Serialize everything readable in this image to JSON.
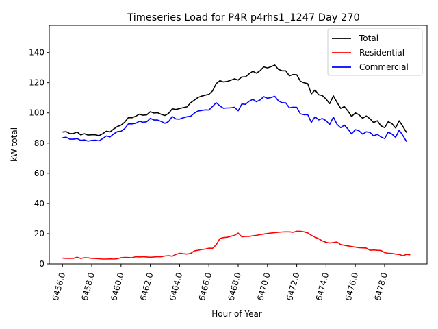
{
  "chart_data": {
    "type": "line",
    "title": "Timeseries Load for P4R p4rhs1_1247  Day 270",
    "xlabel": "Hour of Year",
    "ylabel": "kW total",
    "xlim": [
      6455.1,
      6480.9
    ],
    "ylim": [
      0,
      158
    ],
    "xticks": [
      6456,
      6458,
      6460,
      6462,
      6464,
      6466,
      6468,
      6470,
      6472,
      6474,
      6476,
      6478
    ],
    "xtick_labels": [
      "6456.0",
      "6458.0",
      "6460.0",
      "6462.0",
      "6464.0",
      "6466.0",
      "6468.0",
      "6470.0",
      "6472.0",
      "6474.0",
      "6476.0",
      "6478.0"
    ],
    "yticks": [
      0,
      20,
      40,
      60,
      80,
      100,
      120,
      140
    ],
    "ytick_labels": [
      "0",
      "20",
      "40",
      "60",
      "80",
      "100",
      "120",
      "140"
    ],
    "grid": false,
    "legend_position": "top-right",
    "x": [
      6456.0,
      6456.25,
      6456.5,
      6456.75,
      6457.0,
      6457.25,
      6457.5,
      6457.75,
      6458.0,
      6458.25,
      6458.5,
      6458.75,
      6459.0,
      6459.25,
      6459.5,
      6459.75,
      6460.0,
      6460.25,
      6460.5,
      6460.75,
      6461.0,
      6461.25,
      6461.5,
      6461.75,
      6462.0,
      6462.25,
      6462.5,
      6462.75,
      6463.0,
      6463.25,
      6463.5,
      6463.75,
      6464.0,
      6464.25,
      6464.5,
      6464.75,
      6465.0,
      6465.25,
      6465.5,
      6465.75,
      6466.0,
      6466.25,
      6466.5,
      6466.75,
      6467.0,
      6467.25,
      6467.5,
      6467.75,
      6468.0,
      6468.25,
      6468.5,
      6468.75,
      6469.0,
      6469.25,
      6469.5,
      6469.75,
      6470.0,
      6470.25,
      6470.5,
      6470.75,
      6471.0,
      6471.25,
      6471.5,
      6471.75,
      6472.0,
      6472.25,
      6472.5,
      6472.75,
      6473.0,
      6473.25,
      6473.5,
      6473.75,
      6474.0,
      6474.25,
      6474.5,
      6474.75,
      6475.0,
      6475.25,
      6475.5,
      6475.75,
      6476.0,
      6476.25,
      6476.5,
      6476.75,
      6477.0,
      6477.25,
      6477.5,
      6477.75,
      6478.0,
      6478.25,
      6478.5,
      6478.75,
      6479.0,
      6479.25,
      6479.5,
      6479.75
    ],
    "series": [
      {
        "name": "Total",
        "color": "#000000",
        "values": [
          87.3,
          87.6,
          86.3,
          86.3,
          87.4,
          85.4,
          86.2,
          85.3,
          85.5,
          85.5,
          84.9,
          86.2,
          87.9,
          87.4,
          89.3,
          91.0,
          91.9,
          93.9,
          96.9,
          96.8,
          97.8,
          99.1,
          98.5,
          98.7,
          100.8,
          99.9,
          100.1,
          99.0,
          98.3,
          99.7,
          102.7,
          102.3,
          102.9,
          103.5,
          104.0,
          106.7,
          108.4,
          110.2,
          111.1,
          111.8,
          112.3,
          114.6,
          119.4,
          121.4,
          120.5,
          120.9,
          121.7,
          122.6,
          121.8,
          123.8,
          123.9,
          125.9,
          127.6,
          126.3,
          128.0,
          130.5,
          129.8,
          130.6,
          131.7,
          128.9,
          127.9,
          127.9,
          124.6,
          125.4,
          125.3,
          121.0,
          120.0,
          119.4,
          112.6,
          115.2,
          112.0,
          111.5,
          109.2,
          106.1,
          111.3,
          107.0,
          103.0,
          104.2,
          101.2,
          97.6,
          100.0,
          98.8,
          96.5,
          98.0,
          96.1,
          93.6,
          94.8,
          91.5,
          90.2,
          94.2,
          92.9,
          90.0,
          94.8,
          91.0,
          87.0,
          null
        ]
      },
      {
        "name": "Residential",
        "color": "#ff0000",
        "values": [
          3.8,
          3.7,
          3.7,
          3.7,
          4.4,
          3.6,
          4.1,
          4.0,
          3.7,
          3.6,
          3.4,
          3.2,
          3.2,
          3.3,
          3.2,
          3.4,
          4.1,
          4.3,
          4.2,
          4.1,
          4.7,
          4.6,
          4.7,
          4.6,
          4.4,
          4.6,
          4.8,
          4.7,
          5.2,
          5.4,
          5.1,
          6.3,
          7.0,
          6.7,
          6.5,
          6.9,
          8.6,
          9.0,
          9.5,
          9.8,
          10.4,
          10.3,
          12.6,
          16.8,
          17.4,
          17.6,
          18.3,
          18.9,
          20.4,
          17.9,
          18.2,
          18.2,
          18.6,
          18.9,
          19.4,
          19.7,
          20.1,
          20.4,
          20.7,
          20.9,
          21.1,
          21.2,
          21.2,
          20.9,
          21.6,
          21.6,
          21.2,
          20.5,
          18.9,
          17.7,
          16.6,
          15.2,
          14.3,
          13.8,
          14.1,
          14.5,
          12.8,
          12.3,
          11.9,
          11.5,
          11.1,
          10.7,
          10.6,
          10.5,
          9.0,
          9.2,
          9.0,
          8.9,
          7.5,
          7.0,
          6.9,
          6.5,
          6.2,
          5.4,
          6.3,
          6.0
        ]
      },
      {
        "name": "Commercial",
        "color": "#0000ff",
        "values": [
          83.5,
          83.9,
          82.6,
          82.6,
          83.0,
          81.8,
          82.1,
          81.3,
          81.8,
          81.9,
          81.5,
          83.0,
          84.7,
          84.1,
          86.1,
          87.6,
          87.8,
          89.6,
          92.7,
          92.7,
          93.1,
          94.5,
          93.8,
          94.1,
          96.4,
          95.3,
          95.3,
          94.3,
          93.1,
          94.3,
          97.6,
          96.0,
          95.9,
          96.8,
          97.5,
          97.8,
          99.8,
          101.2,
          101.6,
          102.0,
          101.9,
          104.3,
          106.8,
          104.6,
          103.1,
          103.3,
          103.4,
          103.7,
          101.4,
          105.9,
          105.7,
          107.7,
          109.0,
          107.4,
          108.6,
          110.8,
          109.7,
          110.2,
          111.0,
          108.0,
          106.8,
          106.7,
          103.4,
          103.8,
          103.7,
          99.4,
          98.8,
          98.9,
          93.7,
          97.5,
          95.4,
          96.3,
          94.9,
          92.3,
          97.2,
          92.5,
          90.2,
          91.9,
          89.3,
          86.1,
          88.9,
          88.2,
          85.9,
          87.5,
          87.1,
          84.7,
          85.8,
          84.1,
          83.0,
          87.2,
          86.0,
          83.8,
          88.6,
          85.0,
          81.0,
          null
        ]
      }
    ]
  }
}
